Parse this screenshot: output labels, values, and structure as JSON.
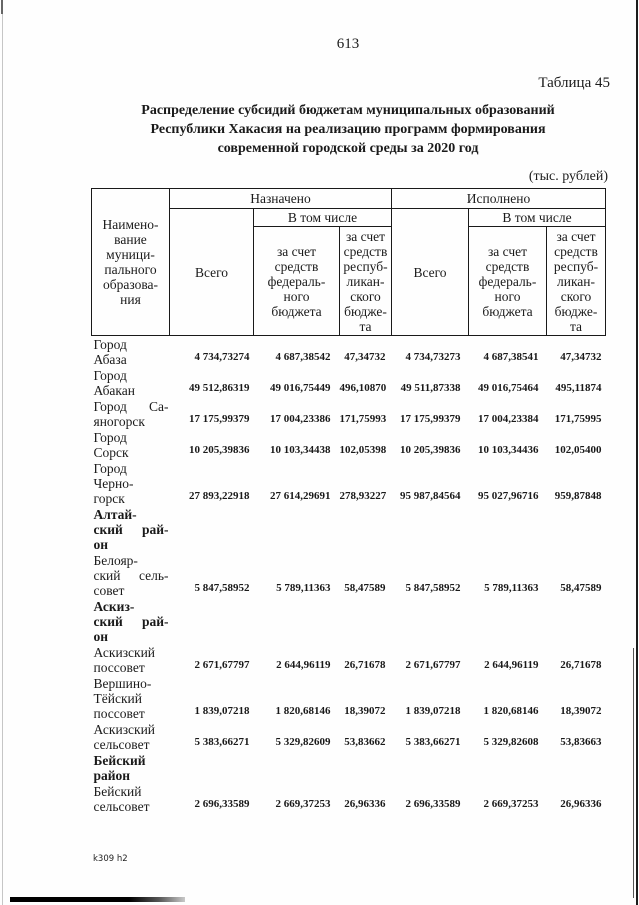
{
  "page": {
    "number": "613",
    "table_label": "Таблица 45",
    "title_lines": [
      "Распределение субсидий бюджетам муниципальных образований",
      "Республики Хакасия на реализацию программ формирования",
      "современной городской среды за 2020 год"
    ],
    "units_note": "(тыс. рублей)",
    "footer_code": "k309 h2"
  },
  "table": {
    "header": {
      "name_column": "Наимено-\nвание\nмуници-\nпального\nобразова-\nния",
      "assigned_group": "Назначено",
      "executed_group": "Исполнено",
      "including": "В том числе",
      "total": "Всего",
      "federal_budget": "за счет\nсредств\nфедераль-\nного\nбюджета",
      "republican_budget": "за счет\nсредств\nреспуб-\nликан-\nского\nбюдже-\nта"
    },
    "rows": [
      {
        "name": "Город\nАбаза",
        "bold": false,
        "values": [
          "4 734,73274",
          "4 687,38542",
          "47,34732",
          "4 734,73273",
          "4 687,38541",
          "47,34732"
        ]
      },
      {
        "name": "Город\nАбакан",
        "bold": false,
        "values": [
          "49 512,86319",
          "49 016,75449",
          "496,10870",
          "49 511,87338",
          "49 016,75464",
          "495,11874"
        ]
      },
      {
        "name": "Город Са-\nяногорск",
        "bold": false,
        "values": [
          "17 175,99379",
          "17 004,23386",
          "171,75993",
          "17 175,99379",
          "17 004,23384",
          "171,75995"
        ]
      },
      {
        "name": "Город\nСорск",
        "bold": false,
        "values": [
          "10 205,39836",
          "10 103,34438",
          "102,05398",
          "10 205,39836",
          "10 103,34436",
          "102,05400"
        ]
      },
      {
        "name": "Город\nЧерно-\nгорск",
        "bold": false,
        "values": [
          "27 893,22918",
          "27 614,29691",
          "278,93227",
          "95 987,84564",
          "95 027,96716",
          "959,87848"
        ]
      },
      {
        "name": "Алтай-\nский рай-\nон",
        "bold": true,
        "values": [
          "",
          "",
          "",
          "",
          "",
          ""
        ]
      },
      {
        "name": "Белояр-\nский сель-\nсовет",
        "bold": false,
        "values": [
          "5 847,58952",
          "5 789,11363",
          "58,47589",
          "5 847,58952",
          "5 789,11363",
          "58,47589"
        ]
      },
      {
        "name": "Аскиз-\nский рай-\nон",
        "bold": true,
        "values": [
          "",
          "",
          "",
          "",
          "",
          ""
        ]
      },
      {
        "name": "Аскизский\nпоссовет",
        "bold": false,
        "values": [
          "2 671,67797",
          "2 644,96119",
          "26,71678",
          "2 671,67797",
          "2 644,96119",
          "26,71678"
        ]
      },
      {
        "name": "Вершино-\nТёйский\nпоссовет",
        "bold": false,
        "values": [
          "1 839,07218",
          "1 820,68146",
          "18,39072",
          "1 839,07218",
          "1 820,68146",
          "18,39072"
        ]
      },
      {
        "name": "Аскизский\nсельсовет",
        "bold": false,
        "values": [
          "5 383,66271",
          "5 329,82609",
          "53,83662",
          "5 383,66271",
          "5 329,82608",
          "53,83663"
        ]
      },
      {
        "name": "Бейский\nрайон",
        "bold": true,
        "values": [
          "",
          "",
          "",
          "",
          "",
          ""
        ]
      },
      {
        "name": "Бейский\nсельсовет",
        "bold": false,
        "values": [
          "2 696,33589",
          "2 669,37253",
          "26,96336",
          "2 696,33589",
          "2 669,37253",
          "26,96336"
        ]
      }
    ]
  }
}
